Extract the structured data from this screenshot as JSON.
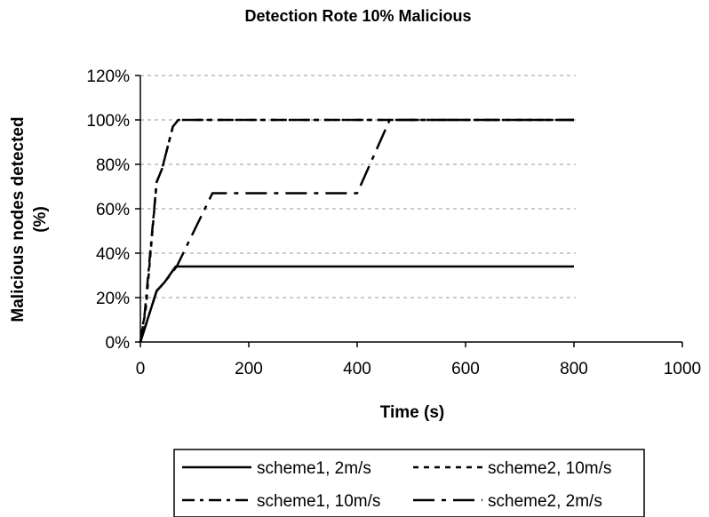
{
  "chart_data": {
    "type": "line",
    "title": "Detection Rote 10% Malicious",
    "xlabel": "Time (s)",
    "ylabel_lines": [
      "Malicious nodes detected",
      "(%)"
    ],
    "xlim": [
      0,
      1000
    ],
    "ylim": [
      0,
      120
    ],
    "x_ticks": [
      0,
      200,
      400,
      600,
      800,
      1000
    ],
    "x_tick_labels": [
      "0",
      "200",
      "400",
      "600",
      "800",
      "1000"
    ],
    "y_ticks": [
      0,
      20,
      40,
      60,
      80,
      100,
      120
    ],
    "y_tick_labels": [
      "0%",
      "20%",
      "40%",
      "60%",
      "80%",
      "100%",
      "120%"
    ],
    "grid": "horizontal dashed",
    "legend_position": "bottom",
    "series": [
      {
        "name": "scheme1, 2m/s",
        "dash": "solid",
        "points": [
          [
            0,
            0
          ],
          [
            30,
            23
          ],
          [
            45,
            27
          ],
          [
            65,
            34
          ],
          [
            800,
            34
          ]
        ]
      },
      {
        "name": "scheme2, 10m/s",
        "dash": "dotted",
        "points": [
          [
            0,
            0
          ],
          [
            10,
            15
          ],
          [
            30,
            72
          ],
          [
            40,
            78
          ],
          [
            60,
            97
          ],
          [
            70,
            100
          ],
          [
            800,
            100
          ]
        ]
      },
      {
        "name": "scheme1, 10m/s",
        "dash": "dash-dot",
        "points": [
          [
            0,
            0
          ],
          [
            8,
            13
          ],
          [
            30,
            72
          ],
          [
            40,
            78
          ],
          [
            60,
            97
          ],
          [
            70,
            100
          ],
          [
            800,
            100
          ]
        ]
      },
      {
        "name": "scheme2, 2m/s",
        "dash": "long-dash-dot",
        "points": [
          [
            0,
            0
          ],
          [
            30,
            23
          ],
          [
            45,
            27
          ],
          [
            67,
            34
          ],
          [
            133,
            67
          ],
          [
            400,
            67
          ],
          [
            460,
            100
          ],
          [
            800,
            100
          ]
        ]
      }
    ]
  }
}
